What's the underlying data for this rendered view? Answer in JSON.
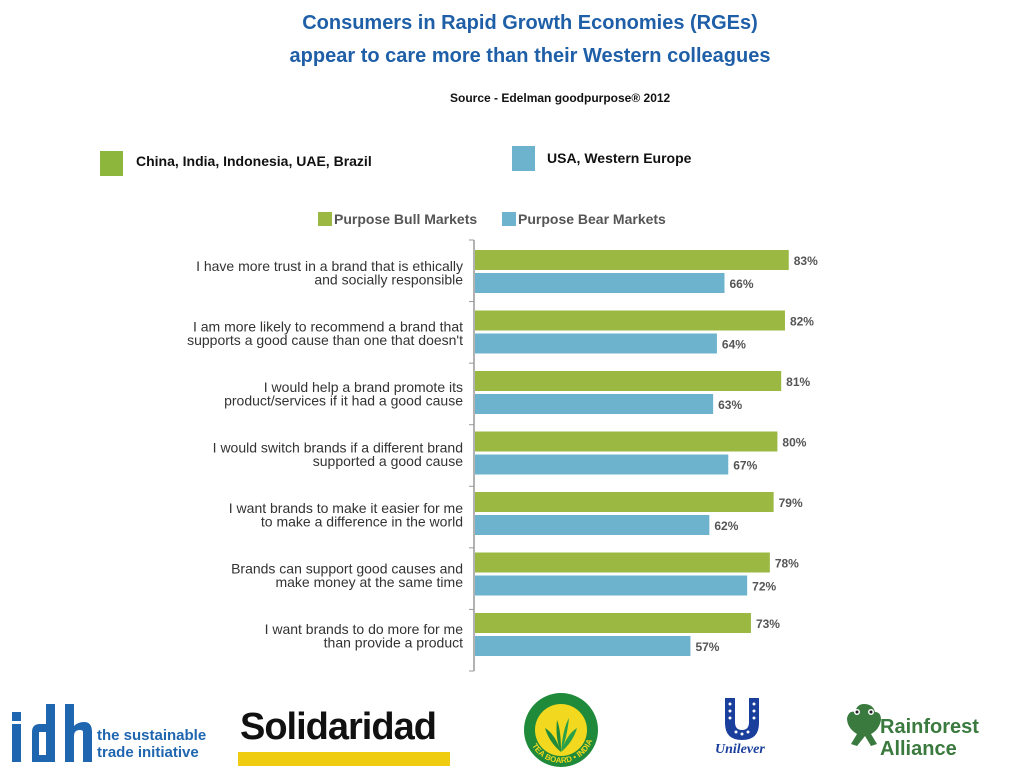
{
  "title": {
    "line1": "Consumers in Rapid Growth Economies (RGEs)",
    "line2": "appear to care more than their Western colleagues"
  },
  "source": "Source - Edelman goodpurpose® 2012",
  "key": {
    "rge": {
      "label": "China, India, Indonesia, UAE, Brazil",
      "color": "#8db63c"
    },
    "west": {
      "label": "USA, Western Europe",
      "color": "#6db3cd"
    }
  },
  "chart_data": {
    "type": "bar",
    "orientation": "horizontal",
    "legend": [
      "Purpose Bull Markets",
      "Purpose Bear Markets"
    ],
    "categories": [
      [
        "I have more trust in a brand that is ethically",
        "and socially responsible"
      ],
      [
        "I am more likely to recommend a brand that",
        "supports a good cause than one that doesn't"
      ],
      [
        "I would help a brand promote its",
        "product/services if it had a good cause"
      ],
      [
        "I would switch brands if a different brand",
        "supported a good cause"
      ],
      [
        "I want brands to make it easier for me",
        "to make a difference in the world"
      ],
      [
        "Brands can support good causes and",
        "make money at the same time"
      ],
      [
        "I want brands to do more for me",
        "than provide a product"
      ]
    ],
    "series": [
      {
        "name": "Purpose Bull Markets",
        "color": "#9ab842",
        "values": [
          83,
          82,
          81,
          80,
          79,
          78,
          73
        ]
      },
      {
        "name": "Purpose Bear Markets",
        "color": "#6db3cd",
        "values": [
          66,
          64,
          63,
          67,
          62,
          72,
          57
        ]
      }
    ],
    "value_suffix": "%",
    "xlim": [
      0,
      100
    ]
  },
  "logos": {
    "idh": {
      "mark": "idh",
      "text1": "the sustainable",
      "text2": "trade initiative"
    },
    "solidaridad": "Solidaridad",
    "teaboard": {
      "text": "TEA BOARD • INDIA"
    },
    "unilever": "Unilever",
    "rainforest": {
      "text1": "Rainforest",
      "text2": "Alliance"
    }
  }
}
